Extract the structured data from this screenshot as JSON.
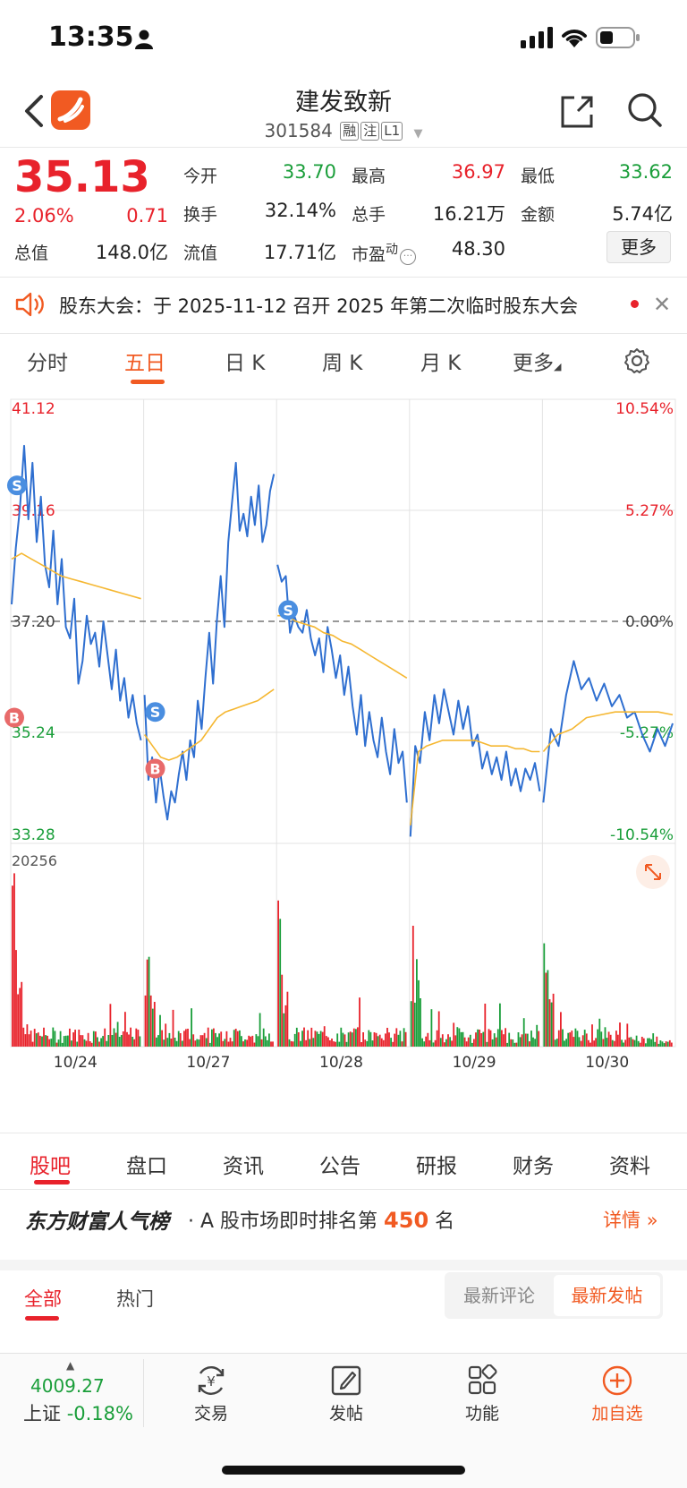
{
  "status_bar": {
    "time": "13:35"
  },
  "header": {
    "stock_name": "建发致新",
    "stock_code": "301584",
    "tags": [
      "融",
      "注",
      "L1"
    ]
  },
  "quote": {
    "price": "35.13",
    "change_pct": "2.06%",
    "change": "0.71",
    "fields": [
      {
        "label": "今开",
        "value": "33.70",
        "color": "green"
      },
      {
        "label": "最高",
        "value": "36.97",
        "color": "red"
      },
      {
        "label": "最低",
        "value": "33.62",
        "color": "green"
      },
      {
        "label": "换手",
        "value": "32.14%",
        "color": "dark"
      },
      {
        "label": "总手",
        "value": "16.21万",
        "color": "dark"
      },
      {
        "label": "金额",
        "value": "5.74亿",
        "color": "dark"
      },
      {
        "label": "总值",
        "value": "148.0亿",
        "color": "dark"
      },
      {
        "label": "流值",
        "value": "17.71亿",
        "color": "dark"
      },
      {
        "label": "市盈",
        "value": "48.30",
        "color": "dark"
      }
    ],
    "pe_superscript": "动",
    "more_label": "更多"
  },
  "notice": {
    "text": "股东大会：于 2025-11-12 召开 2025 年第二次临时股东大会"
  },
  "period_tabs": [
    "分时",
    "五日",
    "日 K",
    "周 K",
    "月 K",
    "更多"
  ],
  "active_period": "五日",
  "chart_data": {
    "type": "line",
    "x": [
      "10/24",
      "10/27",
      "10/28",
      "10/29",
      "10/30"
    ],
    "y_left_ticks": [
      "41.12",
      "39.16",
      "37.20",
      "35.24",
      "33.28"
    ],
    "y_right_ticks": [
      "10.54%",
      "5.27%",
      "0.00%",
      "-5.27%",
      "-10.54%"
    ],
    "ylim": [
      33.28,
      41.12
    ],
    "prev_close": 37.2,
    "series": [
      {
        "values": [
          [
            37.5,
            38.5,
            39.2,
            40.3,
            39.0,
            40.0,
            38.6,
            39.4,
            38.2,
            37.8,
            38.8,
            37.5,
            38.3,
            37.1,
            36.9,
            37.6,
            36.1,
            36.5,
            37.3,
            36.8,
            37.0,
            36.4,
            37.2,
            36.6,
            36.0,
            36.7,
            35.8,
            36.2,
            35.5,
            35.9,
            35.4,
            35.1
          ],
          [
            35.9,
            34.4,
            34.8,
            34.0,
            34.6,
            34.1,
            33.7,
            34.2,
            34.0,
            34.5,
            34.9,
            34.4,
            35.1,
            34.8,
            35.8,
            35.3,
            36.2,
            37.0,
            36.1,
            37.2,
            38.0,
            37.1,
            38.6,
            39.3,
            40.0,
            38.8,
            39.1,
            38.7,
            39.4,
            38.9,
            39.6,
            38.6,
            38.9,
            39.5,
            39.8
          ],
          [
            38.2,
            37.9,
            38.0,
            37.0,
            37.3,
            37.1,
            37.0,
            37.4,
            36.9,
            36.6,
            36.9,
            36.3,
            37.1,
            36.7,
            36.2,
            36.6,
            35.9,
            36.4,
            35.7,
            35.2,
            35.9,
            35.0,
            35.6,
            35.1,
            34.8,
            35.5,
            34.9,
            34.5,
            35.3,
            34.7,
            34.9,
            34.0
          ],
          [
            33.4,
            35.0,
            34.7,
            35.6,
            35.1,
            35.9,
            35.4,
            36.0,
            35.6,
            35.2,
            35.8,
            35.3,
            35.7,
            35.0,
            35.2,
            34.6,
            34.9,
            34.5,
            34.8,
            34.4,
            34.9,
            34.3,
            34.6,
            34.2,
            34.6,
            34.4,
            34.7,
            34.2
          ],
          [
            34.0,
            35.3,
            35.0,
            35.9,
            36.5,
            36.0,
            36.2,
            35.8,
            36.1,
            35.7,
            35.9,
            35.5,
            35.6,
            35.2,
            34.9,
            35.3,
            35.0,
            35.4
          ]
        ]
      },
      {
        "values": [
          [
            38.3,
            38.4,
            38.3,
            38.2,
            38.1,
            38.0,
            37.95,
            37.9,
            37.85,
            37.8,
            37.75,
            37.7,
            37.65,
            37.6
          ],
          [
            35.2,
            35.0,
            34.8,
            34.75,
            34.8,
            34.9,
            35.0,
            35.1,
            35.3,
            35.5,
            35.6,
            35.65,
            35.7,
            35.75,
            35.8,
            35.9,
            36.0
          ],
          [
            37.3,
            37.3,
            37.2,
            37.15,
            37.1,
            37.0,
            36.95,
            36.85,
            36.8,
            36.7,
            36.6,
            36.5,
            36.4,
            36.3,
            36.2
          ],
          [
            33.6,
            34.9,
            35.0,
            35.05,
            35.1,
            35.1,
            35.1,
            35.1,
            35.1,
            35.05,
            35.0,
            35.0,
            35.0,
            34.95,
            34.95,
            34.9,
            34.9
          ],
          [
            34.9,
            35.2,
            35.3,
            35.5,
            35.55,
            35.6,
            35.6,
            35.6,
            35.6,
            35.55
          ]
        ]
      }
    ],
    "volume_max_label": "20256",
    "markers": [
      {
        "label": "S",
        "day": 0,
        "pos": 0.02,
        "value": 39.6
      },
      {
        "label": "B",
        "day": 0,
        "pos": 0.0,
        "value": 35.5
      },
      {
        "label": "S",
        "day": 1,
        "pos": 0.06,
        "value": 35.6
      },
      {
        "label": "B",
        "day": 1,
        "pos": 0.06,
        "value": 34.6
      },
      {
        "label": "S",
        "day": 2,
        "pos": 0.06,
        "value": 37.4
      }
    ]
  },
  "colors": {
    "up": "#e8222b",
    "down": "#1a9e3a",
    "price_line": "#2f6fd0",
    "avg_line": "#f5b731",
    "accent": "#f15a22"
  },
  "content_tabs": [
    "股吧",
    "盘口",
    "资讯",
    "公告",
    "研报",
    "财务",
    "资料"
  ],
  "active_content_tab": "股吧",
  "ranking": {
    "brand": "东方财富人气榜",
    "prefix": "A 股市场即时排名第",
    "rank": "450",
    "suffix": "名",
    "detail": "详情"
  },
  "feed_tabs": [
    "全部",
    "热门"
  ],
  "sort_options": [
    "最新评论",
    "最新发帖"
  ],
  "bottom_toolbar": {
    "index_value": "4009.27",
    "index_name": "上证",
    "index_change": "-0.18%",
    "tools": [
      {
        "label": "交易",
        "icon": "trade-icon"
      },
      {
        "label": "发帖",
        "icon": "compose-icon"
      },
      {
        "label": "功能",
        "icon": "apps-icon"
      },
      {
        "label": "加自选",
        "icon": "add-watchlist-icon"
      }
    ]
  }
}
